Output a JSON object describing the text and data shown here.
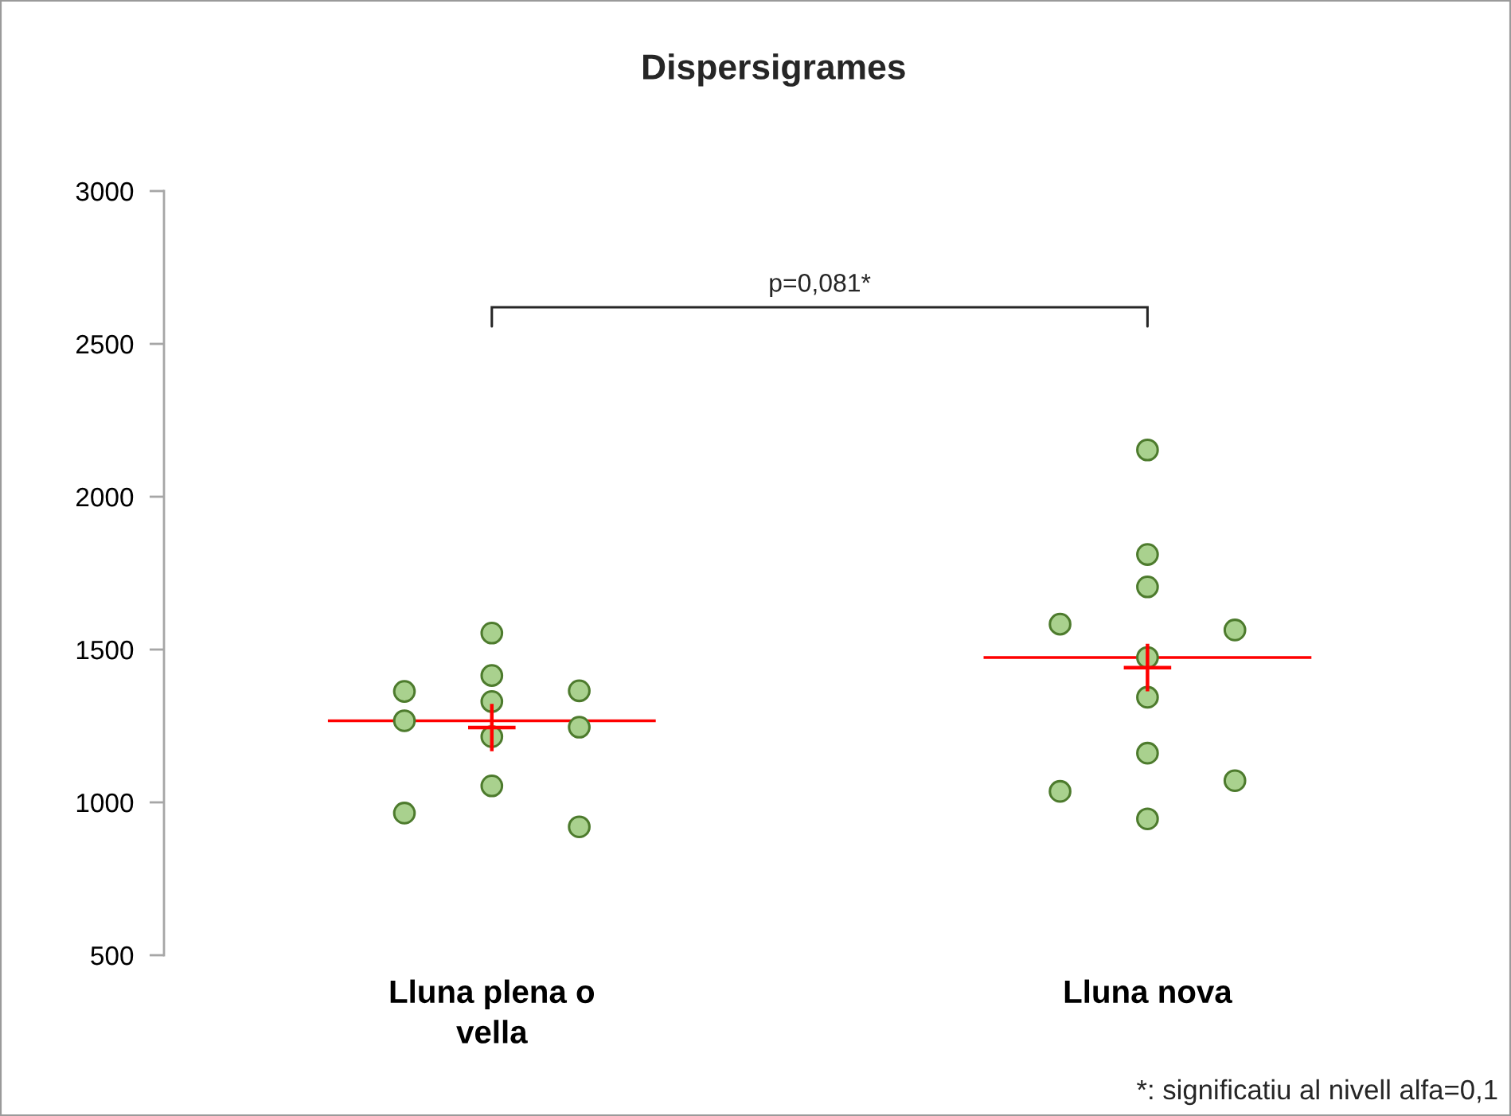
{
  "chart_data": {
    "type": "scatter",
    "title": "Dispersigrames",
    "categories": [
      "Lluna plena o vella",
      "Lluna nova"
    ],
    "ylim": [
      500,
      3000
    ],
    "yticks": [
      500,
      1000,
      1500,
      2000,
      2500,
      3000
    ],
    "series": [
      {
        "marker": "circle",
        "color": "#a9d18e",
        "x": [
          "Lluna plena o vella",
          "Lluna plena o vella",
          "Lluna plena o vella",
          "Lluna plena o vella",
          "Lluna plena o vella",
          "Lluna plena o vella",
          "Lluna plena o vella",
          "Lluna plena o vella",
          "Lluna plena o vella",
          "Lluna plena o vella",
          "Lluna plena o vella"
        ],
        "values": [
          1554,
          1415,
          1330,
          1363,
          1365,
          1215,
          1267,
          1246,
          1054,
          965,
          920
        ]
      },
      {
        "marker": "circle",
        "color": "#a9d18e",
        "x": [
          "Lluna nova",
          "Lluna nova",
          "Lluna nova",
          "Lluna nova",
          "Lluna nova",
          "Lluna nova",
          "Lluna nova",
          "Lluna nova",
          "Lluna nova",
          "Lluna nova",
          "Lluna nova"
        ],
        "values": [
          2153,
          1811,
          1705,
          1583,
          1564,
          1474,
          1344,
          1161,
          1036,
          1071,
          946
        ]
      },
      {
        "marker": "cross",
        "color": "#ff0000",
        "x": [
          "Lluna plena o vella",
          "Lluna nova"
        ],
        "values": [
          1245,
          1441
        ]
      }
    ],
    "ref_lines": [
      {
        "axis": "y",
        "value": 1267,
        "color": "#ff0000"
      },
      {
        "axis": "y",
        "value": 1474,
        "color": "#ff0000"
      }
    ],
    "annotations": [
      "p=0,081*",
      "*: significatiu al nivell alfa=0,1"
    ]
  }
}
